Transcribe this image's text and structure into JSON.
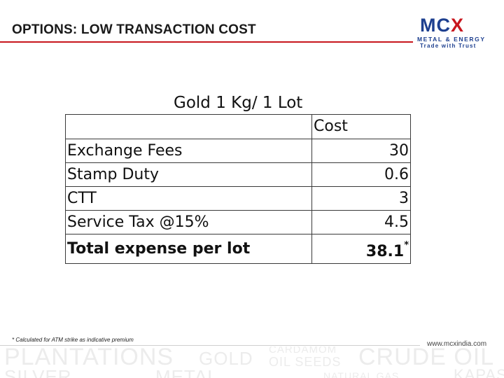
{
  "header": {
    "title": "OPTIONS: LOW TRANSACTION COST",
    "logo": {
      "brand": "MCX",
      "subtitle": "METAL & ENERGY",
      "tagline": "Trade with Trust"
    }
  },
  "table": {
    "heading": "Gold 1 Kg/ 1 Lot",
    "column_header": "Cost",
    "rows": [
      {
        "label": "Exchange Fees",
        "value": "30"
      },
      {
        "label": "Stamp Duty",
        "value": "0.6"
      },
      {
        "label": "CTT",
        "value": "3"
      },
      {
        "label": "Service Tax @15%",
        "value": "4.5"
      }
    ],
    "total": {
      "label": "Total expense per lot",
      "value": "38.1",
      "marker": "*"
    }
  },
  "footnote": "* Calculated for ATM strike as indicative premium",
  "footer": {
    "url": "www.mcxindia.com",
    "watermark_words": [
      "PLANTATIONS",
      "GOLD",
      "CARDAMOM",
      "OIL SEEDS",
      "CRUDE OIL",
      "SILVER",
      "METAL",
      "NATURAL GAS",
      "KAPAS"
    ]
  },
  "colors": {
    "accent": "#c8161d",
    "brand_blue": "#1d3f8f",
    "watermark": "#ececec"
  }
}
